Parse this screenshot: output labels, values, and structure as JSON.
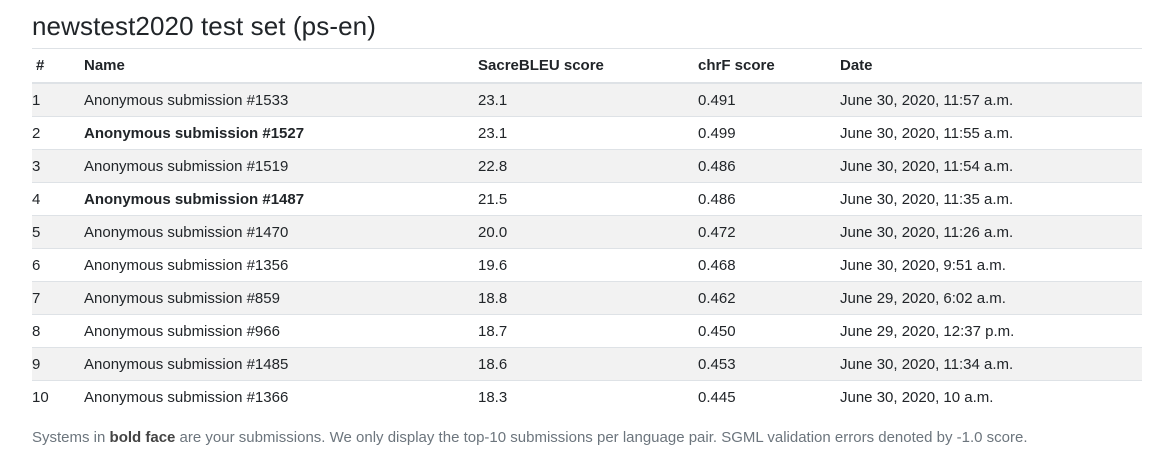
{
  "page": {
    "title": "newstest2020 test set (ps-en)"
  },
  "table": {
    "headers": {
      "rank": "#",
      "name": "Name",
      "bleu": "SacreBLEU score",
      "chrf": "chrF score",
      "date": "Date"
    },
    "rows": [
      {
        "rank": "1",
        "name": "Anonymous submission #1533",
        "bleu": "23.1",
        "chrf": "0.491",
        "date": "June 30, 2020, 11:57 a.m.",
        "own": false
      },
      {
        "rank": "2",
        "name": "Anonymous submission #1527",
        "bleu": "23.1",
        "chrf": "0.499",
        "date": "June 30, 2020, 11:55 a.m.",
        "own": true
      },
      {
        "rank": "3",
        "name": "Anonymous submission #1519",
        "bleu": "22.8",
        "chrf": "0.486",
        "date": "June 30, 2020, 11:54 a.m.",
        "own": false
      },
      {
        "rank": "4",
        "name": "Anonymous submission #1487",
        "bleu": "21.5",
        "chrf": "0.486",
        "date": "June 30, 2020, 11:35 a.m.",
        "own": true
      },
      {
        "rank": "5",
        "name": "Anonymous submission #1470",
        "bleu": "20.0",
        "chrf": "0.472",
        "date": "June 30, 2020, 11:26 a.m.",
        "own": false
      },
      {
        "rank": "6",
        "name": "Anonymous submission #1356",
        "bleu": "19.6",
        "chrf": "0.468",
        "date": "June 30, 2020, 9:51 a.m.",
        "own": false
      },
      {
        "rank": "7",
        "name": "Anonymous submission #859",
        "bleu": "18.8",
        "chrf": "0.462",
        "date": "June 29, 2020, 6:02 a.m.",
        "own": false
      },
      {
        "rank": "8",
        "name": "Anonymous submission #966",
        "bleu": "18.7",
        "chrf": "0.450",
        "date": "June 29, 2020, 12:37 p.m.",
        "own": false
      },
      {
        "rank": "9",
        "name": "Anonymous submission #1485",
        "bleu": "18.6",
        "chrf": "0.453",
        "date": "June 30, 2020, 11:34 a.m.",
        "own": false
      },
      {
        "rank": "10",
        "name": "Anonymous submission #1366",
        "bleu": "18.3",
        "chrf": "0.445",
        "date": "June 30, 2020, 10 a.m.",
        "own": false
      }
    ]
  },
  "footer": {
    "note_prefix": "Systems in ",
    "note_bold": "bold face",
    "note_suffix": " are your submissions. We only display the top-10 submissions per language pair. SGML validation errors denoted by -1.0 score."
  },
  "colors": {
    "stripe": "#f2f2f2",
    "border": "#dee2e6",
    "muted_text": "#6c757d"
  }
}
